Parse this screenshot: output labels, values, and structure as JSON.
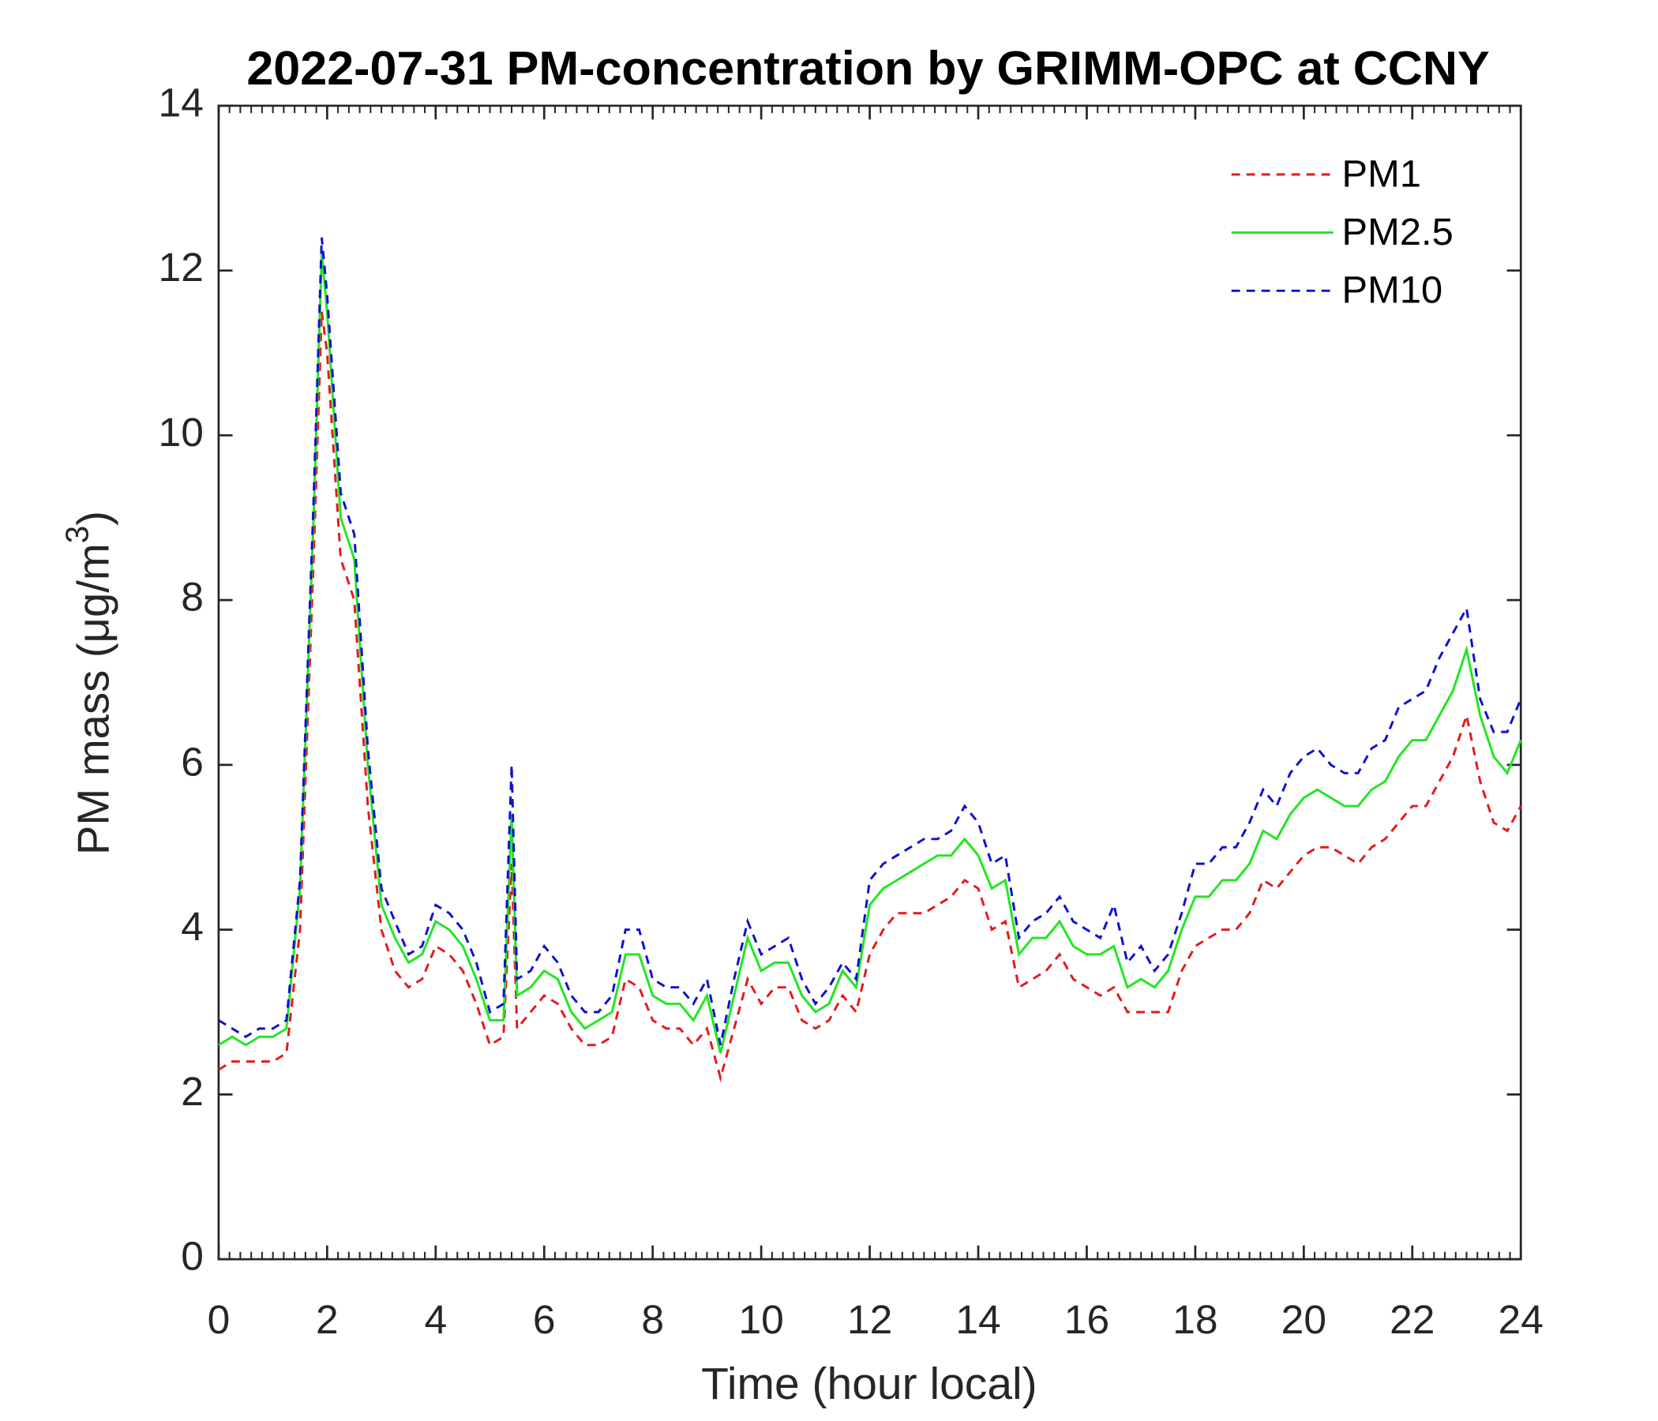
{
  "chart_data": {
    "type": "line",
    "title": "2022-07-31 PM-concentration by GRIMM-OPC at CCNY",
    "xlabel": "Time (hour local)",
    "ylabel": {
      "text": "PM mass (μg/m",
      "superscript": "3",
      "close": ")"
    },
    "x": [
      0,
      0.25,
      0.5,
      0.75,
      1,
      1.25,
      1.5,
      1.75,
      1.9,
      2,
      2.25,
      2.5,
      2.75,
      3,
      3.25,
      3.5,
      3.75,
      4,
      4.25,
      4.5,
      4.75,
      5,
      5.25,
      5.4,
      5.5,
      5.75,
      6,
      6.25,
      6.5,
      6.75,
      7,
      7.25,
      7.5,
      7.75,
      8,
      8.25,
      8.5,
      8.75,
      9,
      9.25,
      9.5,
      9.75,
      10,
      10.25,
      10.5,
      10.75,
      11,
      11.25,
      11.5,
      11.75,
      12,
      12.25,
      12.5,
      12.75,
      13,
      13.25,
      13.5,
      13.75,
      14,
      14.25,
      14.5,
      14.75,
      15,
      15.25,
      15.5,
      15.75,
      16,
      16.25,
      16.5,
      16.75,
      17,
      17.25,
      17.5,
      17.75,
      18,
      18.25,
      18.5,
      18.75,
      19,
      19.25,
      19.5,
      19.75,
      20,
      20.25,
      20.5,
      20.75,
      21,
      21.25,
      21.5,
      21.75,
      22,
      22.25,
      22.5,
      22.75,
      23,
      23.25,
      23.5,
      23.75,
      24
    ],
    "series": [
      {
        "name": "PM1",
        "color": "#e41a1c",
        "dashed": true,
        "values": [
          2.3,
          2.4,
          2.4,
          2.4,
          2.4,
          2.5,
          4.0,
          8.5,
          11.5,
          11.0,
          8.5,
          8.0,
          5.5,
          4.0,
          3.5,
          3.3,
          3.4,
          3.8,
          3.7,
          3.5,
          3.1,
          2.6,
          2.7,
          4.8,
          2.8,
          3.0,
          3.2,
          3.1,
          2.8,
          2.6,
          2.6,
          2.7,
          3.4,
          3.3,
          2.9,
          2.8,
          2.8,
          2.6,
          2.8,
          2.2,
          2.8,
          3.4,
          3.1,
          3.3,
          3.3,
          2.9,
          2.8,
          2.9,
          3.2,
          3.0,
          3.7,
          4.0,
          4.2,
          4.2,
          4.2,
          4.3,
          4.4,
          4.6,
          4.5,
          4.0,
          4.1,
          3.3,
          3.4,
          3.5,
          3.7,
          3.4,
          3.3,
          3.2,
          3.3,
          3.0,
          3.0,
          3.0,
          3.0,
          3.5,
          3.8,
          3.9,
          4.0,
          4.0,
          4.2,
          4.6,
          4.5,
          4.7,
          4.9,
          5.0,
          5.0,
          4.9,
          4.8,
          5.0,
          5.1,
          5.3,
          5.5,
          5.5,
          5.8,
          6.1,
          6.6,
          5.8,
          5.3,
          5.2,
          5.5
        ]
      },
      {
        "name": "PM2.5",
        "color": "#22e622",
        "dashed": false,
        "values": [
          2.6,
          2.7,
          2.6,
          2.7,
          2.7,
          2.8,
          4.5,
          9.0,
          12.2,
          11.5,
          9.0,
          8.5,
          6.0,
          4.3,
          3.9,
          3.6,
          3.7,
          4.1,
          4.0,
          3.8,
          3.4,
          2.9,
          2.9,
          5.4,
          3.2,
          3.3,
          3.5,
          3.4,
          3.0,
          2.8,
          2.9,
          3.0,
          3.7,
          3.7,
          3.2,
          3.1,
          3.1,
          2.9,
          3.2,
          2.5,
          3.2,
          3.9,
          3.5,
          3.6,
          3.6,
          3.2,
          3.0,
          3.1,
          3.5,
          3.3,
          4.3,
          4.5,
          4.6,
          4.7,
          4.8,
          4.9,
          4.9,
          5.1,
          4.9,
          4.5,
          4.6,
          3.7,
          3.9,
          3.9,
          4.1,
          3.8,
          3.7,
          3.7,
          3.8,
          3.3,
          3.4,
          3.3,
          3.5,
          4.0,
          4.4,
          4.4,
          4.6,
          4.6,
          4.8,
          5.2,
          5.1,
          5.4,
          5.6,
          5.7,
          5.6,
          5.5,
          5.5,
          5.7,
          5.8,
          6.1,
          6.3,
          6.3,
          6.6,
          6.9,
          7.4,
          6.6,
          6.1,
          5.9,
          6.3
        ]
      },
      {
        "name": "PM10",
        "color": "#1010d0",
        "dashed": true,
        "values": [
          2.9,
          2.8,
          2.7,
          2.8,
          2.8,
          2.9,
          4.6,
          9.2,
          12.4,
          11.7,
          9.3,
          8.8,
          6.2,
          4.5,
          4.1,
          3.7,
          3.8,
          4.3,
          4.2,
          4.0,
          3.6,
          3.0,
          3.1,
          6.0,
          3.4,
          3.5,
          3.8,
          3.6,
          3.2,
          3.0,
          3.0,
          3.2,
          4.0,
          4.0,
          3.4,
          3.3,
          3.3,
          3.1,
          3.4,
          2.6,
          3.4,
          4.1,
          3.7,
          3.8,
          3.9,
          3.4,
          3.1,
          3.3,
          3.6,
          3.4,
          4.6,
          4.8,
          4.9,
          5.0,
          5.1,
          5.1,
          5.2,
          5.5,
          5.3,
          4.8,
          4.9,
          3.9,
          4.1,
          4.2,
          4.4,
          4.1,
          4.0,
          3.9,
          4.3,
          3.6,
          3.8,
          3.5,
          3.7,
          4.2,
          4.8,
          4.8,
          5.0,
          5.0,
          5.3,
          5.7,
          5.5,
          5.9,
          6.1,
          6.2,
          6.0,
          5.9,
          5.9,
          6.2,
          6.3,
          6.7,
          6.8,
          6.9,
          7.3,
          7.6,
          7.9,
          6.8,
          6.4,
          6.4,
          6.8
        ]
      }
    ],
    "xlim": [
      0,
      24
    ],
    "xticks": [
      0,
      2,
      4,
      6,
      8,
      10,
      12,
      14,
      16,
      18,
      20,
      22,
      24
    ],
    "ylim": [
      0,
      14
    ],
    "yticks": [
      0,
      2,
      4,
      6,
      8,
      10,
      12,
      14
    ],
    "grid": false,
    "legend": "upper right"
  }
}
